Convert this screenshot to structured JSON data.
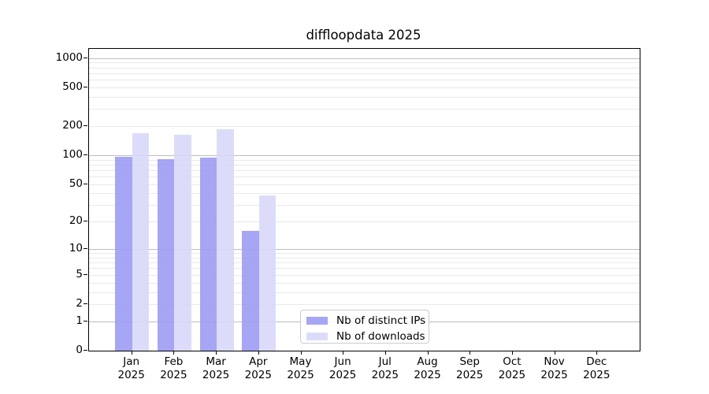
{
  "chart_data": {
    "type": "bar",
    "title": "diffloopdata 2025",
    "categories": [
      "Jan",
      "Feb",
      "Mar",
      "Apr",
      "May",
      "Jun",
      "Jul",
      "Aug",
      "Sep",
      "Oct",
      "Nov",
      "Dec"
    ],
    "category_year": "2025",
    "series": [
      {
        "name": "Nb of distinct IPs",
        "color": "#9c9cf3",
        "opacity": 0.9,
        "values": [
          96,
          91,
          94,
          16,
          null,
          null,
          null,
          null,
          null,
          null,
          null,
          null
        ]
      },
      {
        "name": "Nb of downloads",
        "color": "#d8d8f9",
        "opacity": 0.9,
        "values": [
          168,
          162,
          185,
          38,
          null,
          null,
          null,
          null,
          null,
          null,
          null,
          null
        ]
      }
    ],
    "xlabel": "",
    "ylabel": "",
    "yscale": "log1p",
    "ylim": [
      0,
      1240
    ],
    "yticks": [
      0,
      1,
      2,
      5,
      10,
      20,
      50,
      100,
      200,
      500,
      1000
    ],
    "grid": true,
    "grid_major": [
      1,
      10,
      100,
      1000
    ],
    "grid_minor": [
      2,
      3,
      4,
      5,
      6,
      7,
      8,
      9,
      20,
      30,
      40,
      50,
      60,
      70,
      80,
      90,
      200,
      300,
      400,
      500,
      600,
      700,
      800,
      900
    ],
    "legend_position": "lower center-left inside plot",
    "colors": {
      "grid_major": "#bdbdbd",
      "grid_minor": "#e9e9e9",
      "spine": "#000000",
      "text": "#000000",
      "background": "#ffffff"
    }
  }
}
